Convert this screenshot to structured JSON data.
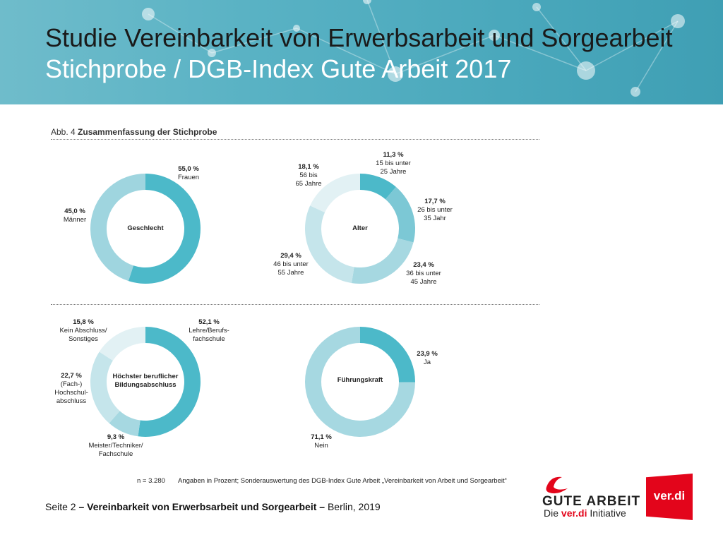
{
  "header": {
    "title": "Studie Vereinbarkeit von Erwerbsarbeit und Sorgearbeit",
    "subtitle": "Stichprobe / DGB-Index Gute Arbeit 2017"
  },
  "figure": {
    "label": "Abb. 4",
    "caption": "Zusammenfassung der Stichprobe"
  },
  "chart_data": [
    {
      "type": "pie",
      "variant": "donut",
      "center_label": "Geschlecht",
      "slices": [
        {
          "value": 55.0,
          "pct": "55,0 %",
          "label": "Frauen",
          "color": "#4cb9c9"
        },
        {
          "value": 45.0,
          "pct": "45,0 %",
          "label": "Männer",
          "color": "#9fd5df"
        }
      ]
    },
    {
      "type": "pie",
      "variant": "donut",
      "center_label": "Alter",
      "slices": [
        {
          "value": 11.3,
          "pct": "11,3 %",
          "label": "15 bis unter 25 Jahre",
          "color": "#4cb9c9"
        },
        {
          "value": 17.7,
          "pct": "17,7 %",
          "label": "26 bis unter 35 Jahr",
          "color": "#7cc8d5"
        },
        {
          "value": 23.4,
          "pct": "23,4 %",
          "label": "36 bis unter 45 Jahre",
          "color": "#a6d8e1"
        },
        {
          "value": 29.4,
          "pct": "29,4 %",
          "label": "46 bis unter 55 Jahre",
          "color": "#c5e5eb"
        },
        {
          "value": 18.1,
          "pct": "18,1 %",
          "label": "56 bis 65 Jahre",
          "color": "#e2f1f4"
        }
      ]
    },
    {
      "type": "pie",
      "variant": "donut",
      "center_label": "Höchster beruflicher Bildungsabschluss",
      "slices": [
        {
          "value": 52.1,
          "pct": "52,1 %",
          "label": "Lehre/Berufsfachschule",
          "color": "#4cb9c9"
        },
        {
          "value": 9.3,
          "pct": "9,3 %",
          "label": "Meister/Techniker/Fachschule",
          "color": "#a6d8e1"
        },
        {
          "value": 22.7,
          "pct": "22,7 %",
          "label": "(Fach-) Hochschulabschluss",
          "color": "#c5e5eb"
        },
        {
          "value": 15.8,
          "pct": "15,8 %",
          "label": "Kein Abschluss/Sonstiges",
          "color": "#e2f1f4"
        }
      ]
    },
    {
      "type": "pie",
      "variant": "donut",
      "center_label": "Führungskraft",
      "slices": [
        {
          "value": 23.9,
          "pct": "23,9 %",
          "label": "Ja",
          "color": "#4cb9c9"
        },
        {
          "value": 71.1,
          "pct": "71,1 %",
          "label": "Nein",
          "color": "#a6d8e1"
        }
      ]
    }
  ],
  "labels": {
    "g1": [
      {
        "pct": "55,0 %",
        "lines": [
          "Frauen"
        ]
      },
      {
        "pct": "45,0 %",
        "lines": [
          "Männer"
        ]
      }
    ],
    "g2": [
      {
        "pct": "11,3 %",
        "lines": [
          "15 bis unter",
          "25 Jahre"
        ]
      },
      {
        "pct": "17,7 %",
        "lines": [
          "26 bis unter",
          "35 Jahr"
        ]
      },
      {
        "pct": "23,4 %",
        "lines": [
          "36 bis unter",
          "45 Jahre"
        ]
      },
      {
        "pct": "29,4 %",
        "lines": [
          "46 bis unter",
          "55 Jahre"
        ]
      },
      {
        "pct": "18,1 %",
        "lines": [
          "56 bis",
          "65 Jahre"
        ]
      }
    ],
    "g3": [
      {
        "pct": "52,1 %",
        "lines": [
          "Lehre/Berufs-",
          "fachschule"
        ]
      },
      {
        "pct": "9,3 %",
        "lines": [
          "Meister/Techniker/",
          "Fachschule"
        ]
      },
      {
        "pct": "22,7 %",
        "lines": [
          "(Fach-)",
          "Hochschul-",
          "abschluss"
        ]
      },
      {
        "pct": "15,8 %",
        "lines": [
          "Kein Abschluss/",
          "Sonstiges"
        ]
      }
    ],
    "g4": [
      {
        "pct": "23,9 %",
        "lines": [
          "Ja"
        ]
      },
      {
        "pct": "71,1 %",
        "lines": [
          "Nein"
        ]
      }
    ],
    "g3_center": [
      "Höchster beruflicher",
      "Bildungsabschluss"
    ]
  },
  "notes": {
    "n": "n = 3.280",
    "source": "Angaben in Prozent; Sonderauswertung des DGB-Index Gute Arbeit „Vereinbarkeit von Arbeit und Sorgearbeit“"
  },
  "footer": {
    "page": "Seite 2",
    "dash1": "–",
    "study": "Vereinbarkeit von Erwerbsarbeit und Sorgearbeit",
    "dash2": "–",
    "place": "Berlin, 2019"
  },
  "logos": {
    "gute_arbeit": "GUTE ARBEIT",
    "die": "Die",
    "verdi_inline": "ver.di",
    "initiative": "Initiative",
    "verdi": "ver.di"
  },
  "colors": {
    "header_bg": "#4aa8bc",
    "verdi_red": "#e3051b",
    "ring_primary": "#4cb9c9"
  }
}
